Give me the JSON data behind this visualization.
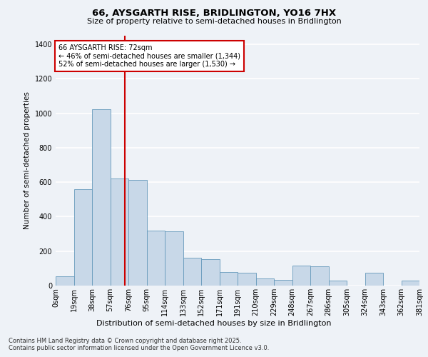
{
  "title1": "66, AYSGARTH RISE, BRIDLINGTON, YO16 7HX",
  "title2": "Size of property relative to semi-detached houses in Bridlington",
  "xlabel": "Distribution of semi-detached houses by size in Bridlington",
  "ylabel": "Number of semi-detached properties",
  "bin_labels": [
    "0sqm",
    "19sqm",
    "38sqm",
    "57sqm",
    "76sqm",
    "95sqm",
    "114sqm",
    "133sqm",
    "152sqm",
    "171sqm",
    "191sqm",
    "210sqm",
    "229sqm",
    "248sqm",
    "267sqm",
    "286sqm",
    "305sqm",
    "324sqm",
    "343sqm",
    "362sqm",
    "381sqm"
  ],
  "bar_heights": [
    55,
    560,
    1025,
    620,
    615,
    320,
    315,
    160,
    155,
    80,
    75,
    40,
    35,
    115,
    110,
    30,
    0,
    75,
    0,
    30
  ],
  "bar_color": "#c8d8e8",
  "bar_edge_color": "#6699bb",
  "vline_x": 3.82,
  "vline_color": "#cc0000",
  "annotation_text": "66 AYSGARTH RISE: 72sqm\n← 46% of semi-detached houses are smaller (1,344)\n52% of semi-detached houses are larger (1,530) →",
  "annotation_box_color": "#ffffff",
  "annotation_edge_color": "#cc0000",
  "ylim": [
    0,
    1450
  ],
  "yticks": [
    0,
    200,
    400,
    600,
    800,
    1000,
    1200,
    1400
  ],
  "footer": "Contains HM Land Registry data © Crown copyright and database right 2025.\nContains public sector information licensed under the Open Government Licence v3.0.",
  "bg_color": "#eef2f7",
  "plot_bg_color": "#eef2f7",
  "grid_color": "#ffffff",
  "title1_fontsize": 9.5,
  "title2_fontsize": 8.0,
  "ylabel_fontsize": 7.5,
  "xlabel_fontsize": 8.0,
  "tick_fontsize": 7.0,
  "annot_fontsize": 7.0,
  "footer_fontsize": 6.0
}
